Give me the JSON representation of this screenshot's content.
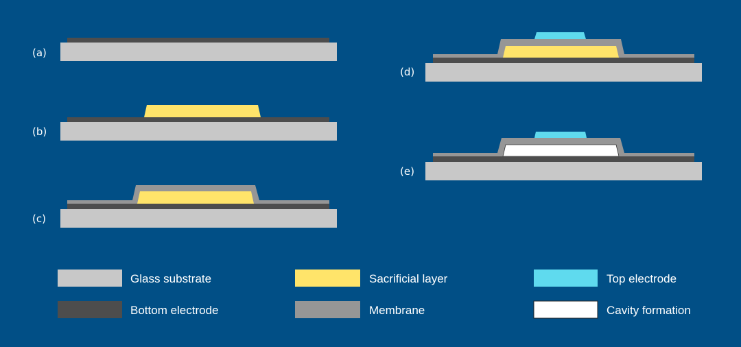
{
  "colors": {
    "background": "#014f86",
    "glass_substrate": "#c8c8c8",
    "bottom_electrode": "#4d4d4d",
    "sacrificial_layer": "#ffe46a",
    "membrane": "#969696",
    "top_electrode": "#5fdaee",
    "cavity": "#ffffff"
  },
  "steps": [
    {
      "label": "(a)"
    },
    {
      "label": "(b)"
    },
    {
      "label": "(c)"
    },
    {
      "label": "(d)"
    },
    {
      "label": "(e)"
    }
  ],
  "legend": [
    {
      "key": "glass_substrate",
      "label": "Glass substrate"
    },
    {
      "key": "bottom_electrode",
      "label": "Bottom electrode"
    },
    {
      "key": "sacrificial_layer",
      "label": "Sacrificial layer"
    },
    {
      "key": "membrane",
      "label": "Membrane"
    },
    {
      "key": "top_electrode",
      "label": "Top electrode"
    },
    {
      "key": "cavity",
      "label": "Cavity formation"
    }
  ]
}
